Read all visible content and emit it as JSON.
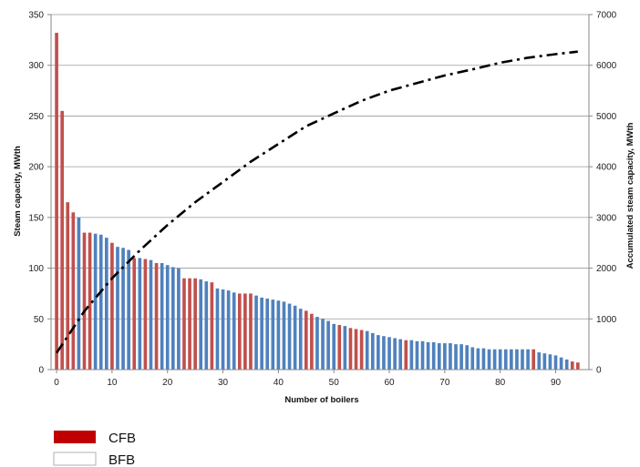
{
  "chart_data": {
    "type": "bar",
    "xlabel": "Number of boilers",
    "ylabel_left": "Steam capacity, MWth",
    "ylabel_right": "Accumulated steam capacity, MWth",
    "ylim_left": [
      0,
      350
    ],
    "ylim_right": [
      0,
      7000
    ],
    "xlim": [
      -1,
      96
    ],
    "x_ticks": [
      0,
      10,
      20,
      30,
      40,
      50,
      60,
      70,
      80,
      90
    ],
    "y_ticks_left": [
      0,
      50,
      100,
      150,
      200,
      250,
      300,
      350
    ],
    "y_ticks_right": [
      0,
      1000,
      2000,
      3000,
      4000,
      5000,
      6000,
      7000
    ],
    "grid": "horizontal",
    "colors": {
      "CFB": "#c0504d",
      "BFB": "#4f81bd",
      "cumulative": "#000000"
    },
    "legend": {
      "placement": "bottom-left",
      "entries": [
        {
          "label": "CFB",
          "swatch": "#c00000"
        },
        {
          "label": "BFB",
          "swatch": "#ffffff"
        }
      ]
    },
    "series": [
      {
        "name": "CFB",
        "kind": "bar",
        "points": [
          [
            0,
            332
          ],
          [
            1,
            255
          ],
          [
            2,
            165
          ],
          [
            3,
            155
          ],
          [
            5,
            135
          ],
          [
            6,
            135
          ],
          [
            10,
            125
          ],
          [
            14,
            110
          ],
          [
            16,
            109
          ],
          [
            18,
            105
          ],
          [
            23,
            90
          ],
          [
            24,
            90
          ],
          [
            25,
            90
          ],
          [
            28,
            86
          ],
          [
            33,
            75
          ],
          [
            34,
            75
          ],
          [
            35,
            75
          ],
          [
            45,
            58
          ],
          [
            46,
            55
          ],
          [
            51,
            44
          ],
          [
            53,
            41
          ],
          [
            54,
            40
          ],
          [
            55,
            39
          ],
          [
            63,
            29
          ],
          [
            86,
            20
          ],
          [
            93,
            8
          ],
          [
            94,
            7
          ]
        ]
      },
      {
        "name": "BFB",
        "kind": "bar",
        "points": [
          [
            4,
            150
          ],
          [
            7,
            134
          ],
          [
            8,
            133
          ],
          [
            9,
            130
          ],
          [
            11,
            121
          ],
          [
            12,
            120
          ],
          [
            13,
            118
          ],
          [
            15,
            110
          ],
          [
            17,
            108
          ],
          [
            19,
            105
          ],
          [
            20,
            103
          ],
          [
            21,
            101
          ],
          [
            22,
            100
          ],
          [
            26,
            89
          ],
          [
            27,
            87
          ],
          [
            29,
            80
          ],
          [
            30,
            79
          ],
          [
            31,
            78
          ],
          [
            32,
            76
          ],
          [
            36,
            73
          ],
          [
            37,
            71
          ],
          [
            38,
            70
          ],
          [
            39,
            69
          ],
          [
            40,
            68
          ],
          [
            41,
            67
          ],
          [
            42,
            65
          ],
          [
            43,
            63
          ],
          [
            44,
            60
          ],
          [
            47,
            52
          ],
          [
            48,
            50
          ],
          [
            49,
            48
          ],
          [
            50,
            45
          ],
          [
            52,
            43
          ],
          [
            56,
            38
          ],
          [
            57,
            36
          ],
          [
            58,
            34
          ],
          [
            59,
            33
          ],
          [
            60,
            32
          ],
          [
            61,
            31
          ],
          [
            62,
            30
          ],
          [
            64,
            29
          ],
          [
            65,
            28
          ],
          [
            66,
            28
          ],
          [
            67,
            27
          ],
          [
            68,
            27
          ],
          [
            69,
            26
          ],
          [
            70,
            26
          ],
          [
            71,
            26
          ],
          [
            72,
            25
          ],
          [
            73,
            25
          ],
          [
            74,
            24
          ],
          [
            75,
            22
          ],
          [
            76,
            21
          ],
          [
            77,
            21
          ],
          [
            78,
            20
          ],
          [
            79,
            20
          ],
          [
            80,
            20
          ],
          [
            81,
            20
          ],
          [
            82,
            20
          ],
          [
            83,
            20
          ],
          [
            84,
            20
          ],
          [
            85,
            20
          ],
          [
            87,
            17
          ],
          [
            88,
            16
          ],
          [
            89,
            15
          ],
          [
            90,
            14
          ],
          [
            91,
            12
          ],
          [
            92,
            10
          ]
        ]
      },
      {
        "name": "Accumulated",
        "kind": "line",
        "axis": "right",
        "style": "dash-dot",
        "points": [
          [
            0,
            330
          ],
          [
            5,
            1150
          ],
          [
            10,
            1800
          ],
          [
            15,
            2350
          ],
          [
            20,
            2850
          ],
          [
            25,
            3300
          ],
          [
            30,
            3700
          ],
          [
            35,
            4100
          ],
          [
            40,
            4450
          ],
          [
            45,
            4800
          ],
          [
            50,
            5050
          ],
          [
            55,
            5300
          ],
          [
            60,
            5500
          ],
          [
            65,
            5650
          ],
          [
            70,
            5800
          ],
          [
            75,
            5920
          ],
          [
            80,
            6050
          ],
          [
            85,
            6150
          ],
          [
            90,
            6220
          ],
          [
            94,
            6270
          ]
        ]
      }
    ]
  }
}
